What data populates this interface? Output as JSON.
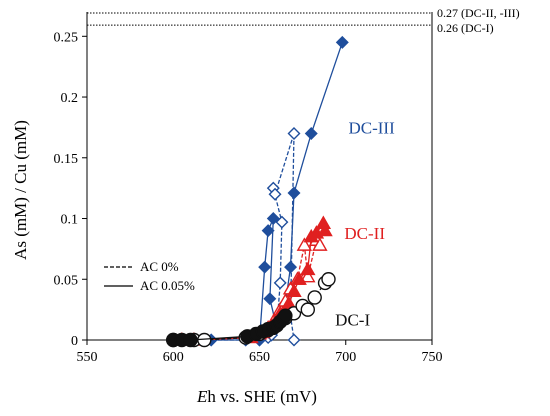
{
  "chart_data": {
    "type": "scatter",
    "xlabel_italic": "E",
    "xlabel_rest": "h vs. SHE (mV)",
    "ylabel": "As (mM) / Cu (mM)",
    "xlim": [
      550,
      750
    ],
    "ylim": [
      0,
      0.27
    ],
    "x_ticks": [
      550,
      600,
      650,
      700,
      750
    ],
    "y_ticks": [
      0,
      0.05,
      0.1,
      0.15,
      0.2,
      0.25
    ],
    "x_tick_labels": [
      "550",
      "600",
      "650",
      "700",
      "750"
    ],
    "y_tick_labels": [
      "0",
      "0.05",
      "0.1",
      "0.15",
      "0.2",
      "0.25"
    ],
    "grid": false,
    "reference_lines": [
      {
        "y": 0.27,
        "label": "0.27 (DC-II, -III)"
      },
      {
        "y": 0.26,
        "label": "0.26 (DC-I)"
      }
    ],
    "legend": {
      "position": "left-middle",
      "entries": [
        {
          "style": "dashed",
          "label": "AC 0%"
        },
        {
          "style": "solid",
          "label": "AC 0.05%"
        }
      ]
    },
    "series": [
      {
        "name": "DC-III",
        "color": "#1f4e9c",
        "marker": "diamond",
        "filled": false,
        "line": "dashed",
        "points": [
          [
            605,
            0
          ],
          [
            610,
            0
          ],
          [
            622,
            0
          ],
          [
            642,
            0
          ],
          [
            650,
            0
          ],
          [
            655,
            0.002
          ],
          [
            657,
            0.004
          ],
          [
            660,
            0.01
          ],
          [
            662,
            0.047
          ],
          [
            663,
            0.097
          ],
          [
            658,
            0.125
          ],
          [
            659,
            0.12
          ],
          [
            670,
            0.17
          ],
          [
            668,
            0.02
          ],
          [
            670,
            0
          ]
        ]
      },
      {
        "name": "DC-III",
        "color": "#1f4e9c",
        "marker": "diamond",
        "filled": true,
        "line": "solid",
        "points": [
          [
            600,
            0
          ],
          [
            610,
            0
          ],
          [
            622,
            0
          ],
          [
            642,
            0
          ],
          [
            650,
            0
          ],
          [
            653,
            0.06
          ],
          [
            655,
            0.09
          ],
          [
            658,
            0.1
          ],
          [
            656,
            0.034
          ],
          [
            660,
            0.01
          ],
          [
            665,
            0.03
          ],
          [
            668,
            0.06
          ],
          [
            670,
            0.121
          ],
          [
            680,
            0.17
          ],
          [
            698,
            0.245
          ]
        ]
      },
      {
        "name": "DC-II",
        "color": "#e02020",
        "marker": "triangle",
        "filled": false,
        "line": "dashed",
        "points": [
          [
            605,
            0
          ],
          [
            612,
            0
          ],
          [
            645,
            0.002
          ],
          [
            650,
            0.005
          ],
          [
            655,
            0.01
          ],
          [
            658,
            0.015
          ],
          [
            662,
            0.025
          ],
          [
            665,
            0.032
          ],
          [
            668,
            0.042
          ],
          [
            672,
            0.05
          ],
          [
            676,
            0.078
          ],
          [
            678,
            0.052
          ],
          [
            683,
            0.082
          ],
          [
            685,
            0.078
          ]
        ]
      },
      {
        "name": "DC-II",
        "color": "#e02020",
        "marker": "triangle",
        "filled": true,
        "line": "solid",
        "points": [
          [
            605,
            0
          ],
          [
            612,
            0
          ],
          [
            645,
            0.002
          ],
          [
            652,
            0.006
          ],
          [
            657,
            0.012
          ],
          [
            662,
            0.022
          ],
          [
            667,
            0.03
          ],
          [
            670,
            0.04
          ],
          [
            673,
            0.05
          ],
          [
            678,
            0.058
          ],
          [
            680,
            0.085
          ],
          [
            683,
            0.088
          ],
          [
            687,
            0.096
          ],
          [
            688,
            0.09
          ]
        ]
      },
      {
        "name": "DC-I",
        "color": "#111111",
        "marker": "circle",
        "filled": false,
        "line": "dashed",
        "points": [
          [
            600,
            0
          ],
          [
            612,
            0
          ],
          [
            618,
            0
          ],
          [
            642,
            0.002
          ],
          [
            650,
            0.005
          ],
          [
            655,
            0.008
          ],
          [
            660,
            0.012
          ],
          [
            665,
            0.018
          ],
          [
            670,
            0.022
          ],
          [
            675,
            0.028
          ],
          [
            678,
            0.025
          ],
          [
            682,
            0.035
          ],
          [
            688,
            0.047
          ],
          [
            690,
            0.05
          ]
        ]
      },
      {
        "name": "DC-I",
        "color": "#111111",
        "marker": "circle",
        "filled": true,
        "line": "solid",
        "points": [
          [
            600,
            0
          ],
          [
            605,
            0
          ],
          [
            610,
            0
          ],
          [
            643,
            0.003
          ],
          [
            648,
            0.005
          ],
          [
            652,
            0.007
          ],
          [
            655,
            0.009
          ],
          [
            658,
            0.01
          ],
          [
            660,
            0.012
          ],
          [
            662,
            0.015
          ],
          [
            664,
            0.018
          ],
          [
            665,
            0.02
          ]
        ]
      }
    ],
    "series_labels": [
      {
        "text": "DC-III",
        "color": "#1f4e9c",
        "x": 715,
        "y": 0.17
      },
      {
        "text": "DC-II",
        "color": "#e02020",
        "x": 711,
        "y": 0.083
      },
      {
        "text": "DC-I",
        "color": "#111111",
        "x": 704,
        "y": 0.012
      }
    ]
  }
}
